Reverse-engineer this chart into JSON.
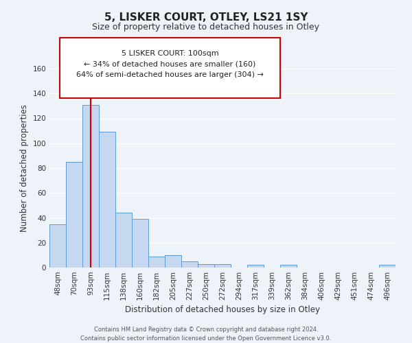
{
  "title": "5, LISKER COURT, OTLEY, LS21 1SY",
  "subtitle": "Size of property relative to detached houses in Otley",
  "xlabel": "Distribution of detached houses by size in Otley",
  "ylabel": "Number of detached properties",
  "bin_labels": [
    "48sqm",
    "70sqm",
    "93sqm",
    "115sqm",
    "138sqm",
    "160sqm",
    "182sqm",
    "205sqm",
    "227sqm",
    "250sqm",
    "272sqm",
    "294sqm",
    "317sqm",
    "339sqm",
    "362sqm",
    "384sqm",
    "406sqm",
    "429sqm",
    "451sqm",
    "474sqm",
    "496sqm"
  ],
  "bar_heights": [
    35,
    85,
    131,
    109,
    44,
    39,
    9,
    10,
    5,
    3,
    3,
    0,
    2,
    0,
    2,
    0,
    0,
    0,
    0,
    0,
    2
  ],
  "bar_color": "#c5d8f0",
  "bar_edge_color": "#5b9bd5",
  "vline_x_idx": 2,
  "vline_color": "#cc0000",
  "ylim_max": 160,
  "yticks": [
    0,
    20,
    40,
    60,
    80,
    100,
    120,
    140,
    160
  ],
  "annotation_title": "5 LISKER COURT: 100sqm",
  "annotation_line1": "← 34% of detached houses are smaller (160)",
  "annotation_line2": "64% of semi-detached houses are larger (304) →",
  "annotation_box_color": "#cc0000",
  "footer_line1": "Contains HM Land Registry data © Crown copyright and database right 2024.",
  "footer_line2": "Contains public sector information licensed under the Open Government Licence v3.0.",
  "bg_color": "#eef2f9",
  "plot_bg_color": "#eef2f9",
  "grid_color": "#ffffff",
  "title_fontsize": 11,
  "subtitle_fontsize": 9,
  "axis_label_fontsize": 8.5,
  "tick_fontsize": 7.5,
  "footer_fontsize": 6
}
